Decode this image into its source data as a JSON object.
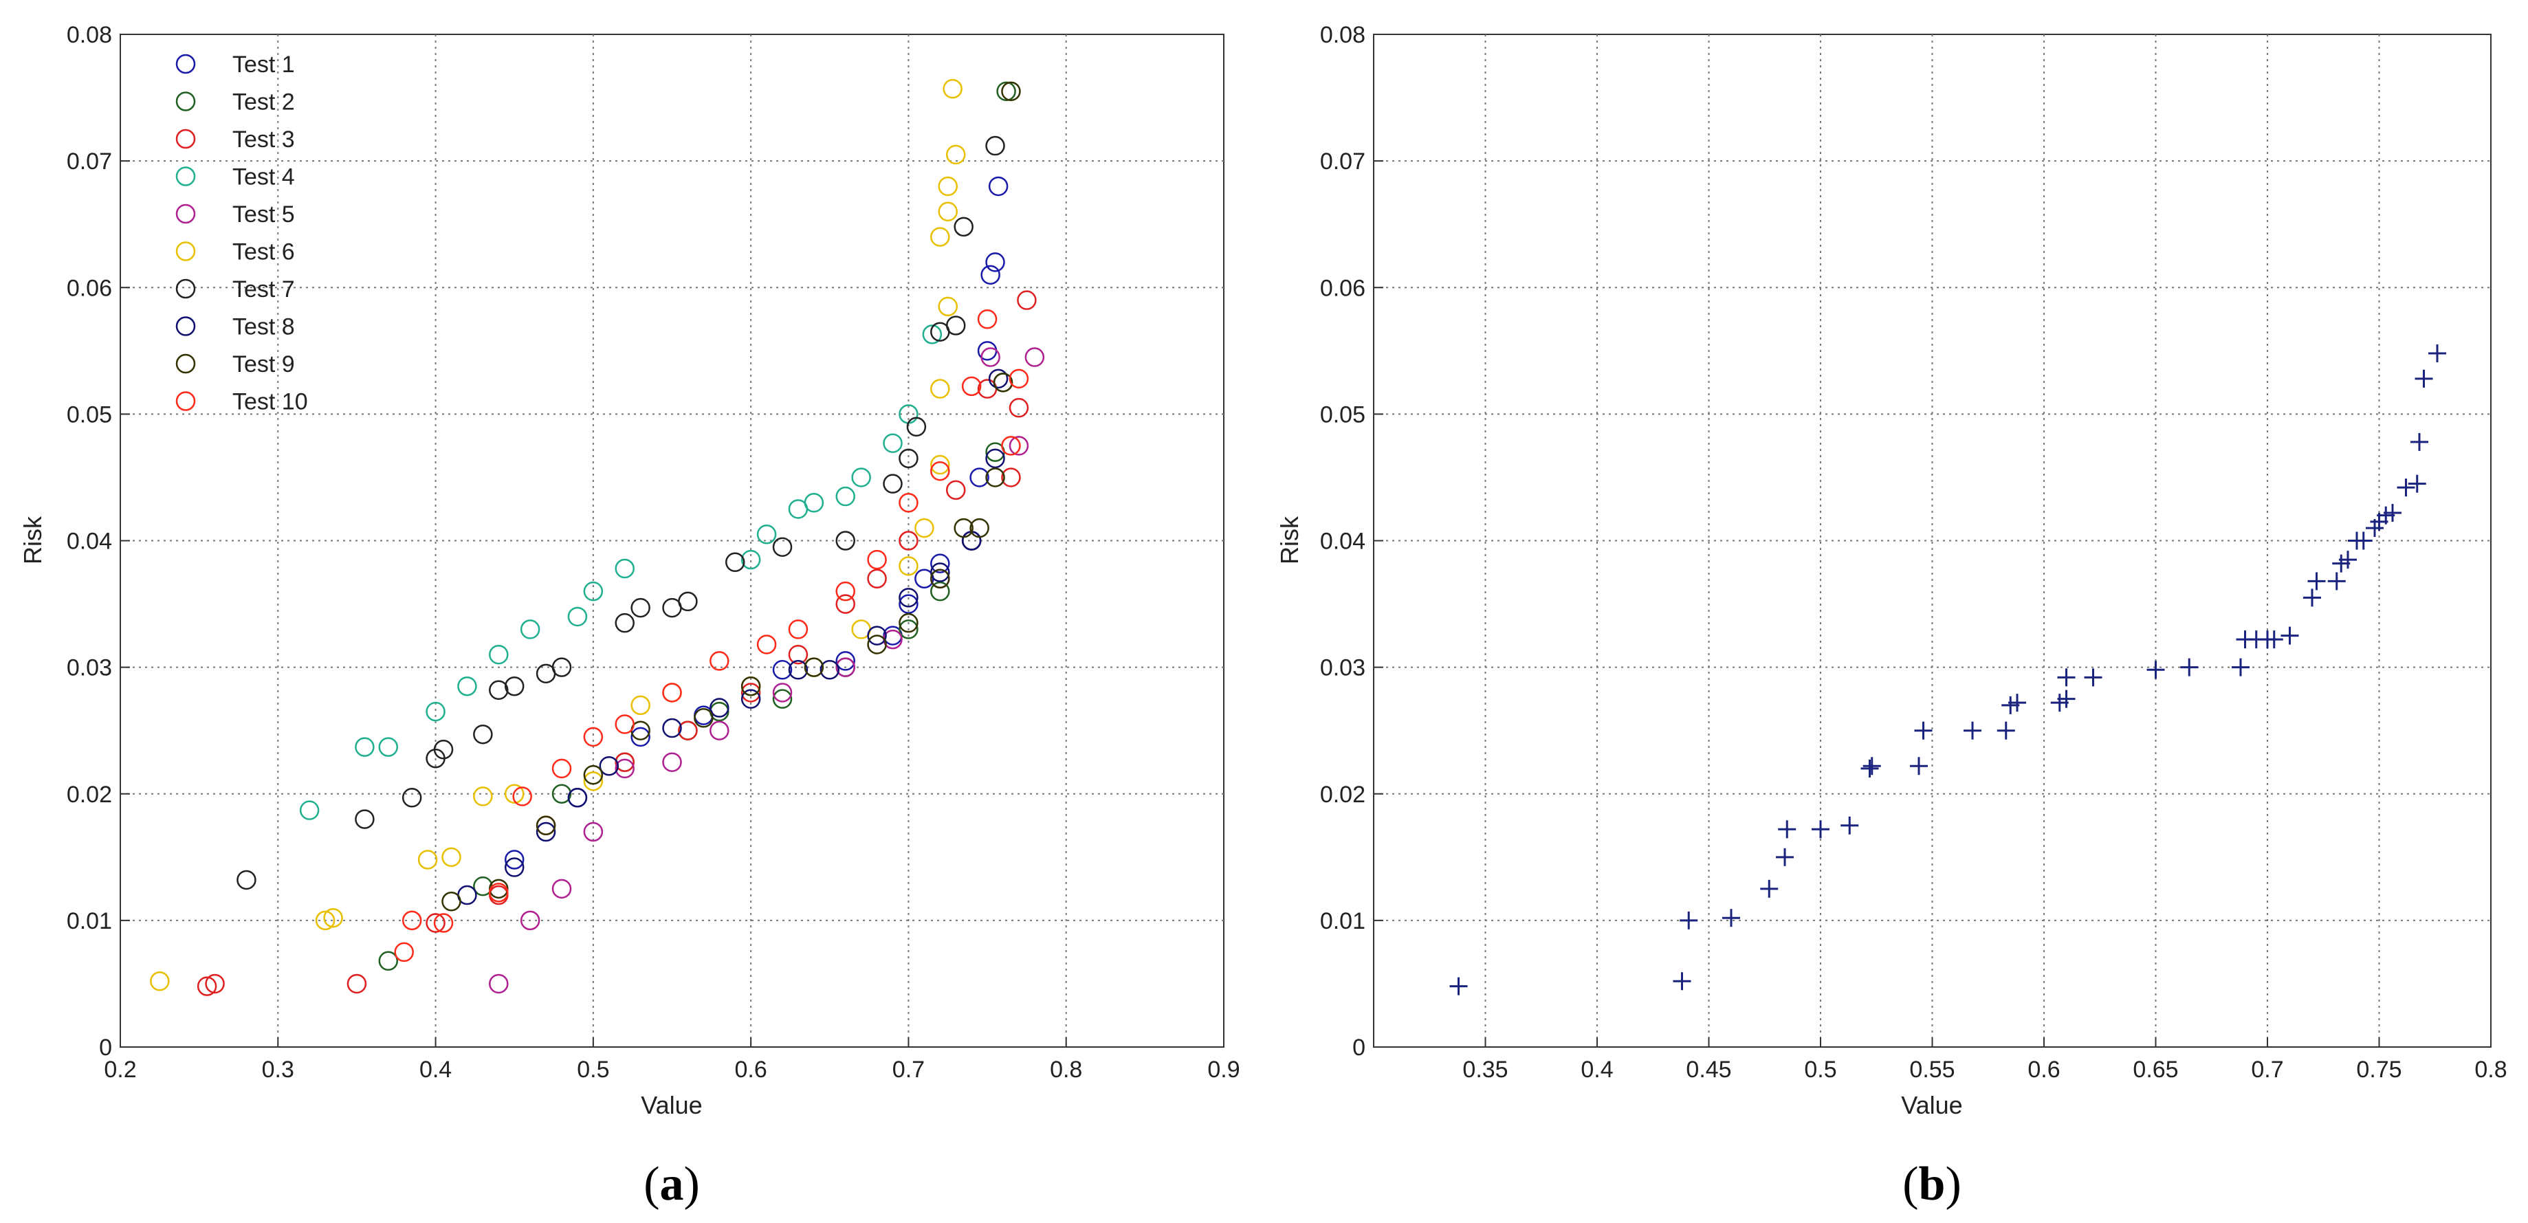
{
  "chart_data": [
    {
      "panel": "(a)",
      "type": "scatter",
      "marker": "circle",
      "xlabel": "Value",
      "ylabel": "Risk",
      "xlim": [
        0.2,
        0.9
      ],
      "ylim": [
        0,
        0.08
      ],
      "xticks": [
        "0.2",
        "0.3",
        "0.4",
        "0.5",
        "0.6",
        "0.7",
        "0.8",
        "0.9"
      ],
      "yticks": [
        "0",
        "0.01",
        "0.02",
        "0.03",
        "0.04",
        "0.05",
        "0.06",
        "0.07",
        "0.08"
      ],
      "grid": true,
      "legend_position": "top-left",
      "series": [
        {
          "name": "Test 1",
          "color": "#1a1aaa",
          "points": [
            [
              0.45,
              0.0148
            ],
            [
              0.49,
              0.0197
            ],
            [
              0.53,
              0.0245
            ],
            [
              0.57,
              0.0262
            ],
            [
              0.62,
              0.0298
            ],
            [
              0.66,
              0.0305
            ],
            [
              0.69,
              0.0325
            ],
            [
              0.7,
              0.035
            ],
            [
              0.71,
              0.037
            ],
            [
              0.72,
              0.0382
            ],
            [
              0.74,
              0.04
            ],
            [
              0.745,
              0.045
            ],
            [
              0.75,
              0.055
            ],
            [
              0.752,
              0.061
            ],
            [
              0.755,
              0.062
            ],
            [
              0.757,
              0.068
            ]
          ]
        },
        {
          "name": "Test 2",
          "color": "#206020",
          "points": [
            [
              0.37,
              0.0068
            ],
            [
              0.43,
              0.0127
            ],
            [
              0.48,
              0.02
            ],
            [
              0.52,
              0.0225
            ],
            [
              0.56,
              0.025
            ],
            [
              0.58,
              0.0265
            ],
            [
              0.62,
              0.0275
            ],
            [
              0.66,
              0.03
            ],
            [
              0.7,
              0.033
            ],
            [
              0.72,
              0.036
            ],
            [
              0.74,
              0.04
            ],
            [
              0.755,
              0.047
            ],
            [
              0.76,
              0.0525
            ],
            [
              0.762,
              0.0755
            ]
          ]
        },
        {
          "name": "Test 3",
          "color": "#e02020",
          "points": [
            [
              0.255,
              0.0048
            ],
            [
              0.26,
              0.005
            ],
            [
              0.35,
              0.005
            ],
            [
              0.4,
              0.0098
            ],
            [
              0.44,
              0.012
            ],
            [
              0.47,
              0.0175
            ],
            [
              0.52,
              0.0225
            ],
            [
              0.56,
              0.025
            ],
            [
              0.6,
              0.028
            ],
            [
              0.63,
              0.031
            ],
            [
              0.66,
              0.035
            ],
            [
              0.68,
              0.037
            ],
            [
              0.7,
              0.04
            ],
            [
              0.73,
              0.044
            ],
            [
              0.75,
              0.052
            ],
            [
              0.765,
              0.045
            ],
            [
              0.77,
              0.0505
            ],
            [
              0.775,
              0.059
            ]
          ]
        },
        {
          "name": "Test 4",
          "color": "#20b090",
          "points": [
            [
              0.32,
              0.0187
            ],
            [
              0.355,
              0.0237
            ],
            [
              0.37,
              0.0237
            ],
            [
              0.4,
              0.0265
            ],
            [
              0.42,
              0.0285
            ],
            [
              0.44,
              0.031
            ],
            [
              0.46,
              0.033
            ],
            [
              0.49,
              0.034
            ],
            [
              0.5,
              0.036
            ],
            [
              0.52,
              0.0378
            ],
            [
              0.6,
              0.0385
            ],
            [
              0.61,
              0.0405
            ],
            [
              0.63,
              0.0425
            ],
            [
              0.64,
              0.043
            ],
            [
              0.66,
              0.0435
            ],
            [
              0.67,
              0.045
            ],
            [
              0.69,
              0.0477
            ],
            [
              0.7,
              0.05
            ],
            [
              0.715,
              0.0563
            ]
          ]
        },
        {
          "name": "Test 5",
          "color": "#b02090",
          "points": [
            [
              0.44,
              0.005
            ],
            [
              0.46,
              0.01
            ],
            [
              0.48,
              0.0125
            ],
            [
              0.5,
              0.017
            ],
            [
              0.52,
              0.022
            ],
            [
              0.55,
              0.0225
            ],
            [
              0.58,
              0.025
            ],
            [
              0.62,
              0.028
            ],
            [
              0.66,
              0.03
            ],
            [
              0.69,
              0.0322
            ],
            [
              0.72,
              0.037
            ],
            [
              0.74,
              0.04
            ],
            [
              0.752,
              0.0545
            ],
            [
              0.77,
              0.0475
            ],
            [
              0.78,
              0.0545
            ]
          ]
        },
        {
          "name": "Test 6",
          "color": "#e8c000",
          "points": [
            [
              0.225,
              0.0052
            ],
            [
              0.33,
              0.01
            ],
            [
              0.335,
              0.0102
            ],
            [
              0.395,
              0.0148
            ],
            [
              0.41,
              0.015
            ],
            [
              0.43,
              0.0198
            ],
            [
              0.45,
              0.02
            ],
            [
              0.5,
              0.021
            ],
            [
              0.53,
              0.027
            ],
            [
              0.55,
              0.028
            ],
            [
              0.6,
              0.0285
            ],
            [
              0.64,
              0.03
            ],
            [
              0.67,
              0.033
            ],
            [
              0.7,
              0.038
            ],
            [
              0.71,
              0.041
            ],
            [
              0.72,
              0.046
            ],
            [
              0.72,
              0.052
            ],
            [
              0.725,
              0.0585
            ],
            [
              0.72,
              0.064
            ],
            [
              0.725,
              0.066
            ],
            [
              0.725,
              0.068
            ],
            [
              0.73,
              0.0705
            ],
            [
              0.728,
              0.0757
            ]
          ]
        },
        {
          "name": "Test 7",
          "color": "#222222",
          "points": [
            [
              0.28,
              0.0132
            ],
            [
              0.355,
              0.018
            ],
            [
              0.385,
              0.0197
            ],
            [
              0.4,
              0.0228
            ],
            [
              0.405,
              0.0235
            ],
            [
              0.43,
              0.0247
            ],
            [
              0.44,
              0.0282
            ],
            [
              0.45,
              0.0285
            ],
            [
              0.47,
              0.0295
            ],
            [
              0.48,
              0.03
            ],
            [
              0.52,
              0.0335
            ],
            [
              0.53,
              0.0347
            ],
            [
              0.55,
              0.0347
            ],
            [
              0.56,
              0.0352
            ],
            [
              0.59,
              0.0383
            ],
            [
              0.62,
              0.0395
            ],
            [
              0.66,
              0.04
            ],
            [
              0.69,
              0.0445
            ],
            [
              0.7,
              0.0465
            ],
            [
              0.705,
              0.049
            ],
            [
              0.72,
              0.0565
            ],
            [
              0.73,
              0.057
            ],
            [
              0.735,
              0.0648
            ],
            [
              0.755,
              0.0712
            ]
          ]
        },
        {
          "name": "Test 8",
          "color": "#101070",
          "points": [
            [
              0.42,
              0.012
            ],
            [
              0.45,
              0.0142
            ],
            [
              0.47,
              0.017
            ],
            [
              0.49,
              0.0197
            ],
            [
              0.51,
              0.0222
            ],
            [
              0.55,
              0.0252
            ],
            [
              0.58,
              0.0268
            ],
            [
              0.6,
              0.0275
            ],
            [
              0.63,
              0.0298
            ],
            [
              0.65,
              0.0298
            ],
            [
              0.68,
              0.0325
            ],
            [
              0.7,
              0.0355
            ],
            [
              0.72,
              0.0375
            ],
            [
              0.74,
              0.04
            ],
            [
              0.755,
              0.0465
            ],
            [
              0.757,
              0.0528
            ]
          ]
        },
        {
          "name": "Test 9",
          "color": "#333300",
          "points": [
            [
              0.41,
              0.0115
            ],
            [
              0.44,
              0.0125
            ],
            [
              0.47,
              0.0175
            ],
            [
              0.5,
              0.0215
            ],
            [
              0.53,
              0.025
            ],
            [
              0.57,
              0.026
            ],
            [
              0.6,
              0.0285
            ],
            [
              0.64,
              0.03
            ],
            [
              0.68,
              0.0318
            ],
            [
              0.7,
              0.0335
            ],
            [
              0.72,
              0.037
            ],
            [
              0.735,
              0.041
            ],
            [
              0.745,
              0.041
            ],
            [
              0.755,
              0.045
            ],
            [
              0.76,
              0.0525
            ],
            [
              0.765,
              0.0755
            ]
          ]
        },
        {
          "name": "Test 10",
          "color": "#ff2a1a",
          "points": [
            [
              0.38,
              0.0075
            ],
            [
              0.385,
              0.01
            ],
            [
              0.405,
              0.0098
            ],
            [
              0.44,
              0.0122
            ],
            [
              0.455,
              0.0198
            ],
            [
              0.48,
              0.022
            ],
            [
              0.5,
              0.0245
            ],
            [
              0.52,
              0.0255
            ],
            [
              0.55,
              0.028
            ],
            [
              0.58,
              0.0305
            ],
            [
              0.61,
              0.0318
            ],
            [
              0.63,
              0.033
            ],
            [
              0.66,
              0.036
            ],
            [
              0.68,
              0.0385
            ],
            [
              0.7,
              0.043
            ],
            [
              0.72,
              0.0455
            ],
            [
              0.74,
              0.0522
            ],
            [
              0.75,
              0.0575
            ],
            [
              0.765,
              0.0475
            ],
            [
              0.77,
              0.0528
            ]
          ]
        }
      ]
    },
    {
      "panel": "(b)",
      "type": "scatter",
      "marker": "plus",
      "xlabel": "Value",
      "ylabel": "Risk",
      "xlim": [
        0.3,
        0.8
      ],
      "ylim": [
        0,
        0.08
      ],
      "xticks": [
        "0.35",
        "0.4",
        "0.45",
        "0.5",
        "0.55",
        "0.6",
        "0.65",
        "0.7",
        "0.75",
        "0.8"
      ],
      "yticks": [
        "0",
        "0.01",
        "0.02",
        "0.03",
        "0.04",
        "0.05",
        "0.06",
        "0.07",
        "0.08"
      ],
      "grid": true,
      "color": "#1a237e",
      "points": [
        [
          0.338,
          0.0048
        ],
        [
          0.438,
          0.0052
        ],
        [
          0.441,
          0.01
        ],
        [
          0.46,
          0.0102
        ],
        [
          0.477,
          0.0125
        ],
        [
          0.484,
          0.015
        ],
        [
          0.485,
          0.0172
        ],
        [
          0.5,
          0.0172
        ],
        [
          0.513,
          0.0175
        ],
        [
          0.522,
          0.022
        ],
        [
          0.523,
          0.0222
        ],
        [
          0.544,
          0.0222
        ],
        [
          0.546,
          0.025
        ],
        [
          0.568,
          0.025
        ],
        [
          0.583,
          0.025
        ],
        [
          0.585,
          0.027
        ],
        [
          0.588,
          0.0272
        ],
        [
          0.607,
          0.0272
        ],
        [
          0.61,
          0.0275
        ],
        [
          0.61,
          0.0292
        ],
        [
          0.622,
          0.0292
        ],
        [
          0.65,
          0.0298
        ],
        [
          0.665,
          0.03
        ],
        [
          0.688,
          0.03
        ],
        [
          0.69,
          0.0322
        ],
        [
          0.695,
          0.0322
        ],
        [
          0.7,
          0.0322
        ],
        [
          0.703,
          0.0322
        ],
        [
          0.71,
          0.0325
        ],
        [
          0.72,
          0.0355
        ],
        [
          0.722,
          0.0368
        ],
        [
          0.731,
          0.0368
        ],
        [
          0.733,
          0.0382
        ],
        [
          0.736,
          0.0385
        ],
        [
          0.74,
          0.04
        ],
        [
          0.743,
          0.04
        ],
        [
          0.748,
          0.041
        ],
        [
          0.75,
          0.0415
        ],
        [
          0.753,
          0.042
        ],
        [
          0.756,
          0.0422
        ],
        [
          0.762,
          0.0442
        ],
        [
          0.767,
          0.0445
        ],
        [
          0.768,
          0.0478
        ],
        [
          0.77,
          0.0528
        ],
        [
          0.776,
          0.0548
        ]
      ]
    }
  ],
  "panel_labels": {
    "a": "a",
    "b": "b"
  }
}
